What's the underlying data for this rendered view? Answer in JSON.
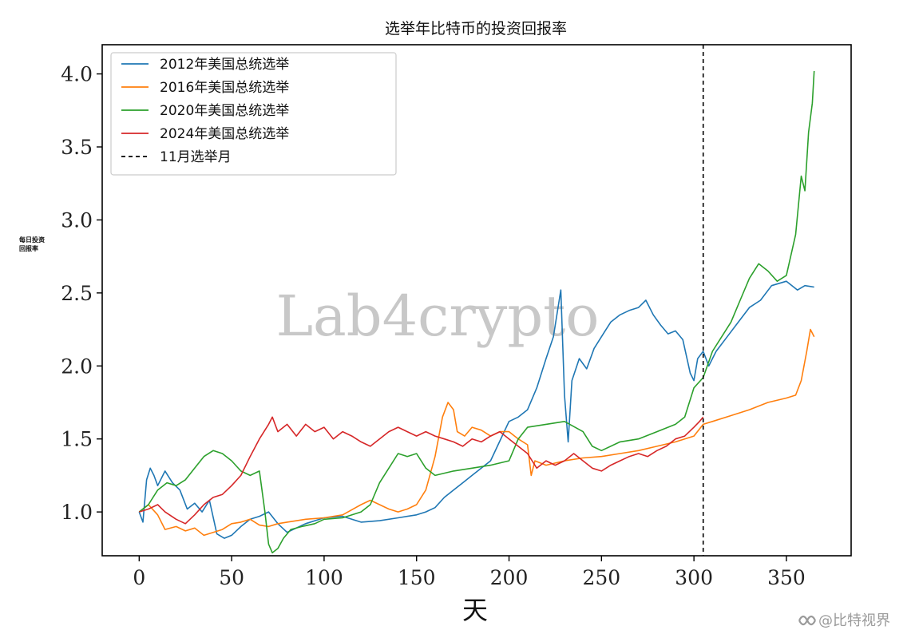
{
  "chart_data": {
    "type": "line",
    "title": "选举年比特币的投资回报率",
    "xlabel": "天",
    "ylabel": [
      "每日投资",
      "回报率"
    ],
    "xlim": [
      -20,
      385
    ],
    "ylim": [
      0.7,
      4.2
    ],
    "xticks": [
      0,
      50,
      100,
      150,
      200,
      250,
      300,
      350
    ],
    "xtick_labels": [
      "0",
      "50",
      "100",
      "150",
      "200",
      "250",
      "300",
      "350"
    ],
    "yticks": [
      1.0,
      1.5,
      2.0,
      2.5,
      3.0,
      3.5,
      4.0
    ],
    "ytick_labels": [
      "1.0",
      "1.5",
      "2.0",
      "2.5",
      "3.0",
      "3.5",
      "4.0"
    ],
    "grid": false,
    "legend_position": "top-left",
    "vline": {
      "x": 305,
      "style": "dashed",
      "label": "11月选举月",
      "color": "#000000"
    },
    "series": [
      {
        "name": "2012年美国总统选举",
        "color": "#1f77b4",
        "points": [
          [
            0,
            1.0
          ],
          [
            2,
            0.93
          ],
          [
            4,
            1.22
          ],
          [
            6,
            1.3
          ],
          [
            8,
            1.25
          ],
          [
            10,
            1.18
          ],
          [
            14,
            1.28
          ],
          [
            18,
            1.2
          ],
          [
            22,
            1.15
          ],
          [
            26,
            1.02
          ],
          [
            30,
            1.06
          ],
          [
            34,
            1.0
          ],
          [
            38,
            1.08
          ],
          [
            42,
            0.85
          ],
          [
            46,
            0.82
          ],
          [
            50,
            0.84
          ],
          [
            55,
            0.9
          ],
          [
            60,
            0.95
          ],
          [
            65,
            0.97
          ],
          [
            70,
            1.0
          ],
          [
            75,
            0.92
          ],
          [
            80,
            0.86
          ],
          [
            90,
            0.92
          ],
          [
            100,
            0.96
          ],
          [
            110,
            0.97
          ],
          [
            120,
            0.93
          ],
          [
            130,
            0.94
          ],
          [
            140,
            0.96
          ],
          [
            150,
            0.98
          ],
          [
            155,
            1.0
          ],
          [
            160,
            1.03
          ],
          [
            165,
            1.1
          ],
          [
            170,
            1.15
          ],
          [
            175,
            1.2
          ],
          [
            180,
            1.25
          ],
          [
            190,
            1.35
          ],
          [
            200,
            1.62
          ],
          [
            205,
            1.65
          ],
          [
            210,
            1.7
          ],
          [
            215,
            1.85
          ],
          [
            220,
            2.05
          ],
          [
            224,
            2.2
          ],
          [
            228,
            2.52
          ],
          [
            230,
            1.8
          ],
          [
            232,
            1.48
          ],
          [
            234,
            1.9
          ],
          [
            238,
            2.05
          ],
          [
            242,
            1.98
          ],
          [
            246,
            2.12
          ],
          [
            250,
            2.2
          ],
          [
            255,
            2.3
          ],
          [
            260,
            2.35
          ],
          [
            265,
            2.38
          ],
          [
            270,
            2.4
          ],
          [
            274,
            2.45
          ],
          [
            278,
            2.35
          ],
          [
            282,
            2.28
          ],
          [
            286,
            2.22
          ],
          [
            290,
            2.24
          ],
          [
            294,
            2.18
          ],
          [
            298,
            1.95
          ],
          [
            300,
            1.9
          ],
          [
            302,
            2.05
          ],
          [
            305,
            2.1
          ],
          [
            308,
            2.0
          ],
          [
            312,
            2.1
          ],
          [
            318,
            2.2
          ],
          [
            324,
            2.3
          ],
          [
            330,
            2.4
          ],
          [
            336,
            2.45
          ],
          [
            342,
            2.55
          ],
          [
            350,
            2.58
          ],
          [
            356,
            2.52
          ],
          [
            360,
            2.55
          ],
          [
            365,
            2.54
          ]
        ]
      },
      {
        "name": "2016年美国总统选举",
        "color": "#ff7f0e",
        "points": [
          [
            0,
            1.0
          ],
          [
            5,
            1.05
          ],
          [
            10,
            0.98
          ],
          [
            14,
            0.88
          ],
          [
            20,
            0.9
          ],
          [
            25,
            0.87
          ],
          [
            30,
            0.89
          ],
          [
            35,
            0.84
          ],
          [
            40,
            0.86
          ],
          [
            45,
            0.88
          ],
          [
            50,
            0.92
          ],
          [
            55,
            0.93
          ],
          [
            60,
            0.95
          ],
          [
            65,
            0.91
          ],
          [
            70,
            0.9
          ],
          [
            75,
            0.92
          ],
          [
            80,
            0.93
          ],
          [
            90,
            0.95
          ],
          [
            100,
            0.96
          ],
          [
            110,
            0.98
          ],
          [
            120,
            1.05
          ],
          [
            125,
            1.08
          ],
          [
            130,
            1.05
          ],
          [
            135,
            1.02
          ],
          [
            140,
            1.0
          ],
          [
            145,
            1.02
          ],
          [
            150,
            1.05
          ],
          [
            155,
            1.15
          ],
          [
            160,
            1.38
          ],
          [
            164,
            1.65
          ],
          [
            167,
            1.75
          ],
          [
            170,
            1.7
          ],
          [
            172,
            1.55
          ],
          [
            176,
            1.52
          ],
          [
            180,
            1.58
          ],
          [
            185,
            1.56
          ],
          [
            190,
            1.52
          ],
          [
            195,
            1.55
          ],
          [
            200,
            1.55
          ],
          [
            205,
            1.5
          ],
          [
            210,
            1.46
          ],
          [
            212,
            1.25
          ],
          [
            214,
            1.35
          ],
          [
            220,
            1.32
          ],
          [
            230,
            1.35
          ],
          [
            240,
            1.37
          ],
          [
            250,
            1.38
          ],
          [
            260,
            1.4
          ],
          [
            270,
            1.42
          ],
          [
            280,
            1.45
          ],
          [
            290,
            1.48
          ],
          [
            300,
            1.52
          ],
          [
            305,
            1.6
          ],
          [
            310,
            1.62
          ],
          [
            320,
            1.66
          ],
          [
            330,
            1.7
          ],
          [
            340,
            1.75
          ],
          [
            350,
            1.78
          ],
          [
            355,
            1.8
          ],
          [
            358,
            1.9
          ],
          [
            361,
            2.1
          ],
          [
            363,
            2.25
          ],
          [
            365,
            2.2
          ]
        ]
      },
      {
        "name": "2020年美国总统选举",
        "color": "#2ca02c",
        "points": [
          [
            0,
            1.0
          ],
          [
            5,
            1.05
          ],
          [
            10,
            1.15
          ],
          [
            15,
            1.2
          ],
          [
            20,
            1.18
          ],
          [
            25,
            1.22
          ],
          [
            30,
            1.3
          ],
          [
            35,
            1.38
          ],
          [
            40,
            1.42
          ],
          [
            45,
            1.4
          ],
          [
            50,
            1.35
          ],
          [
            55,
            1.28
          ],
          [
            60,
            1.25
          ],
          [
            65,
            1.28
          ],
          [
            68,
            1.0
          ],
          [
            70,
            0.78
          ],
          [
            72,
            0.72
          ],
          [
            75,
            0.75
          ],
          [
            78,
            0.82
          ],
          [
            82,
            0.88
          ],
          [
            88,
            0.9
          ],
          [
            95,
            0.92
          ],
          [
            100,
            0.95
          ],
          [
            110,
            0.96
          ],
          [
            120,
            1.0
          ],
          [
            125,
            1.05
          ],
          [
            130,
            1.2
          ],
          [
            135,
            1.3
          ],
          [
            140,
            1.4
          ],
          [
            145,
            1.38
          ],
          [
            150,
            1.4
          ],
          [
            155,
            1.3
          ],
          [
            160,
            1.25
          ],
          [
            170,
            1.28
          ],
          [
            180,
            1.3
          ],
          [
            190,
            1.32
          ],
          [
            200,
            1.35
          ],
          [
            205,
            1.5
          ],
          [
            210,
            1.58
          ],
          [
            220,
            1.6
          ],
          [
            230,
            1.62
          ],
          [
            240,
            1.55
          ],
          [
            245,
            1.45
          ],
          [
            250,
            1.42
          ],
          [
            260,
            1.48
          ],
          [
            270,
            1.5
          ],
          [
            280,
            1.55
          ],
          [
            290,
            1.6
          ],
          [
            295,
            1.65
          ],
          [
            300,
            1.85
          ],
          [
            305,
            1.92
          ],
          [
            310,
            2.1
          ],
          [
            315,
            2.2
          ],
          [
            320,
            2.3
          ],
          [
            325,
            2.45
          ],
          [
            330,
            2.6
          ],
          [
            335,
            2.7
          ],
          [
            340,
            2.65
          ],
          [
            345,
            2.58
          ],
          [
            350,
            2.62
          ],
          [
            355,
            2.9
          ],
          [
            358,
            3.3
          ],
          [
            360,
            3.2
          ],
          [
            362,
            3.6
          ],
          [
            364,
            3.8
          ],
          [
            365,
            4.02
          ]
        ]
      },
      {
        "name": "2024年美国总统选举",
        "color": "#d62728",
        "points": [
          [
            0,
            1.0
          ],
          [
            5,
            1.02
          ],
          [
            10,
            1.05
          ],
          [
            14,
            1.0
          ],
          [
            20,
            0.95
          ],
          [
            25,
            0.92
          ],
          [
            30,
            0.98
          ],
          [
            35,
            1.05
          ],
          [
            40,
            1.1
          ],
          [
            45,
            1.12
          ],
          [
            50,
            1.18
          ],
          [
            55,
            1.25
          ],
          [
            60,
            1.38
          ],
          [
            65,
            1.5
          ],
          [
            70,
            1.6
          ],
          [
            72,
            1.65
          ],
          [
            75,
            1.55
          ],
          [
            80,
            1.6
          ],
          [
            85,
            1.52
          ],
          [
            90,
            1.6
          ],
          [
            95,
            1.55
          ],
          [
            100,
            1.58
          ],
          [
            105,
            1.5
          ],
          [
            110,
            1.55
          ],
          [
            115,
            1.52
          ],
          [
            120,
            1.48
          ],
          [
            125,
            1.45
          ],
          [
            130,
            1.5
          ],
          [
            135,
            1.55
          ],
          [
            140,
            1.58
          ],
          [
            145,
            1.55
          ],
          [
            150,
            1.52
          ],
          [
            155,
            1.55
          ],
          [
            160,
            1.52
          ],
          [
            165,
            1.5
          ],
          [
            170,
            1.48
          ],
          [
            175,
            1.45
          ],
          [
            180,
            1.5
          ],
          [
            185,
            1.48
          ],
          [
            190,
            1.52
          ],
          [
            195,
            1.55
          ],
          [
            200,
            1.5
          ],
          [
            205,
            1.45
          ],
          [
            210,
            1.4
          ],
          [
            215,
            1.3
          ],
          [
            220,
            1.35
          ],
          [
            225,
            1.32
          ],
          [
            230,
            1.35
          ],
          [
            235,
            1.4
          ],
          [
            240,
            1.35
          ],
          [
            245,
            1.3
          ],
          [
            250,
            1.28
          ],
          [
            255,
            1.32
          ],
          [
            260,
            1.35
          ],
          [
            265,
            1.38
          ],
          [
            270,
            1.4
          ],
          [
            275,
            1.38
          ],
          [
            280,
            1.42
          ],
          [
            285,
            1.45
          ],
          [
            290,
            1.5
          ],
          [
            295,
            1.52
          ],
          [
            300,
            1.58
          ],
          [
            303,
            1.62
          ],
          [
            305,
            1.65
          ]
        ]
      }
    ]
  },
  "watermark": "Lab4crypto",
  "corner_mark": {
    "icon": "wechat-channels-icon",
    "text": "@比特视界"
  }
}
